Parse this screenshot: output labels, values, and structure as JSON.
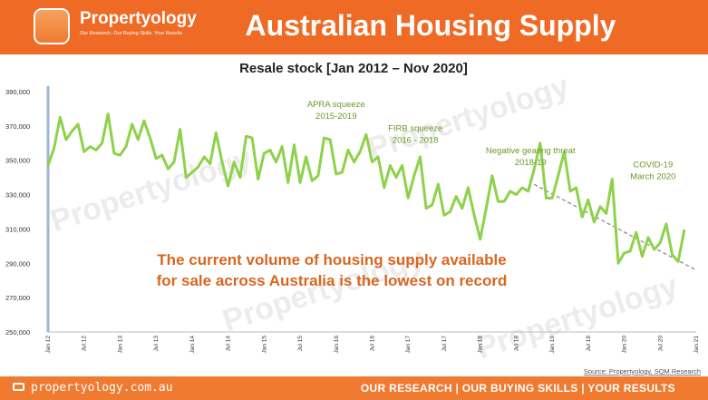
{
  "header": {
    "brand": "Propertyology",
    "brand_tagline": "Our Research. Our Buying Skills. Your Results",
    "title": "Australian Housing Supply"
  },
  "footer": {
    "website": "propertyology.com.au",
    "tagline": "OUR RESEARCH | OUR BUYING SKILLS | YOUR RESULTS"
  },
  "colors": {
    "brand": "#ef6a24",
    "line": "#8dd24a",
    "annotation": "#6a9a2a",
    "message": "#d9661f"
  },
  "chart_data": {
    "type": "line",
    "title": "Resale stock [Jan 2012 – Nov 2020]",
    "source": "Source: Propertyology, SQM Research",
    "watermark": "Propertyology",
    "ylim": [
      250000,
      390000
    ],
    "y_ticks": [
      250000,
      270000,
      290000,
      310000,
      330000,
      350000,
      370000,
      390000
    ],
    "y_tick_labels": [
      "250,000",
      "270,000",
      "290,000",
      "310,000",
      "330,000",
      "350,000",
      "370,000",
      "390,000"
    ],
    "x_ticks": [
      2012,
      2012.5,
      2013,
      2013.5,
      2014,
      2014.5,
      2015,
      2015.5,
      2016,
      2016.5,
      2017,
      2017.5,
      2018,
      2018.5,
      2019,
      2019.5,
      2020,
      2020.5,
      2021
    ],
    "x_tick_labels": [
      "Jan 12",
      "Jul 12",
      "Jan 13",
      "Jul 13",
      "Jan 14",
      "Jul 14",
      "Jan 15",
      "Jul 15",
      "Jan 16",
      "Jul 16",
      "Jan 17",
      "Jul 17",
      "Jan 18",
      "Jul 18",
      "Jan 19",
      "Jul 19",
      "Jan 20",
      "Jul 20",
      "Jan 21"
    ],
    "series": [
      {
        "x": [
          2012.0,
          2012.083,
          2012.167,
          2012.25,
          2012.333,
          2012.417,
          2012.5,
          2012.583,
          2012.667,
          2012.75,
          2012.833,
          2012.917,
          2013.0,
          2013.083,
          2013.167,
          2013.25,
          2013.333,
          2013.417,
          2013.5,
          2013.583,
          2013.667,
          2013.75,
          2013.833,
          2013.917,
          2014.0,
          2014.083,
          2014.167,
          2014.25,
          2014.333,
          2014.417,
          2014.5,
          2014.583,
          2014.667,
          2014.75,
          2014.833,
          2014.917,
          2015.0,
          2015.083,
          2015.167,
          2015.25,
          2015.333,
          2015.417,
          2015.5,
          2015.583,
          2015.667,
          2015.75,
          2015.833,
          2015.917,
          2016.0,
          2016.083,
          2016.167,
          2016.25,
          2016.333,
          2016.417,
          2016.5,
          2016.583,
          2016.667,
          2016.75,
          2016.833,
          2016.917,
          2017.0,
          2017.083,
          2017.167,
          2017.25,
          2017.333,
          2017.417,
          2017.5,
          2017.583,
          2017.667,
          2017.75,
          2017.833,
          2017.917,
          2018.0,
          2018.083,
          2018.167,
          2018.25,
          2018.333,
          2018.417,
          2018.5,
          2018.583,
          2018.667,
          2018.75,
          2018.833,
          2018.917,
          2019.0,
          2019.083,
          2019.167,
          2019.25,
          2019.333,
          2019.417,
          2019.5,
          2019.583,
          2019.667,
          2019.75,
          2019.833,
          2019.917,
          2020.0,
          2020.083,
          2020.167,
          2020.25,
          2020.333,
          2020.417,
          2020.5,
          2020.583,
          2020.667,
          2020.75,
          2020.833
        ],
        "values": [
          347000,
          357000,
          375000,
          362000,
          367000,
          371000,
          355000,
          358000,
          356000,
          360000,
          377000,
          354000,
          353000,
          358000,
          371000,
          362000,
          373000,
          363000,
          351000,
          353000,
          345000,
          349000,
          368000,
          340000,
          343000,
          346000,
          352000,
          348000,
          366000,
          349000,
          335000,
          349000,
          340000,
          364000,
          363000,
          339000,
          354000,
          356000,
          349000,
          358000,
          337000,
          359000,
          337000,
          352000,
          338000,
          341000,
          363000,
          362000,
          342000,
          343000,
          356000,
          349000,
          355000,
          365000,
          349000,
          352000,
          334000,
          347000,
          340000,
          347000,
          328000,
          341000,
          352000,
          322000,
          324000,
          336000,
          318000,
          320000,
          329000,
          322000,
          334000,
          318000,
          304000,
          322000,
          341000,
          326000,
          326000,
          332000,
          330000,
          334000,
          332000,
          345000,
          360000,
          328000,
          328000,
          341000,
          355000,
          332000,
          334000,
          317000,
          327000,
          314000,
          323000,
          319000,
          339000,
          290000,
          296000,
          297000,
          308000,
          294000,
          305000,
          298000,
          302000,
          313000,
          295000,
          291000,
          309000
        ]
      }
    ],
    "trendline": {
      "x": [
        2018.75,
        2021.0
      ],
      "values": [
        336000,
        286000
      ]
    },
    "annotations": [
      {
        "title": "APRA squeeze",
        "subtitle": "2015-2019",
        "x": 2016.0,
        "y": 381000
      },
      {
        "title": "FIRB squeeze",
        "subtitle": "2016 - 2018",
        "x": 2017.1,
        "y": 367000
      },
      {
        "title": "Negative gearing threat",
        "subtitle": "2018-19",
        "x": 2018.7,
        "y": 354000
      },
      {
        "title": "COVID-19",
        "subtitle": "March 2020",
        "x": 2020.4,
        "y": 346000
      }
    ],
    "message": [
      "The current volume of housing supply available",
      "for sale across Australia is the lowest on record"
    ],
    "grid": false,
    "legend": "none"
  }
}
